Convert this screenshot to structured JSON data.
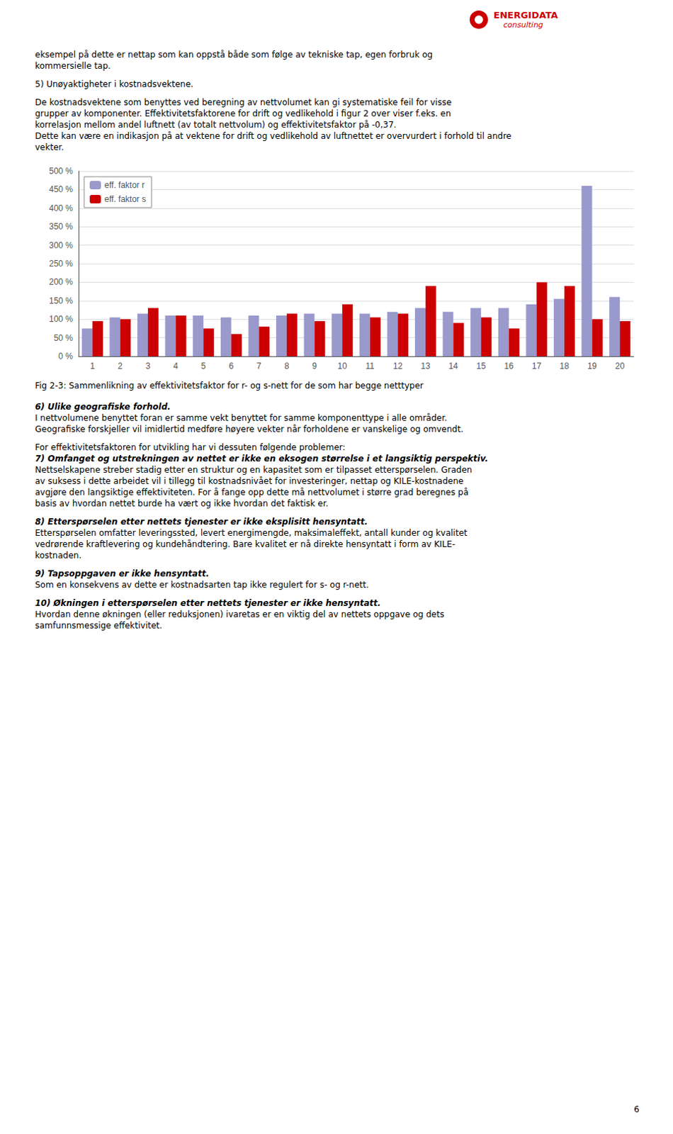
{
  "chart_data": {
    "type": "bar",
    "categories": [
      1,
      2,
      3,
      4,
      5,
      6,
      7,
      8,
      9,
      10,
      11,
      12,
      13,
      14,
      15,
      16,
      17,
      18,
      19,
      20
    ],
    "series": [
      {
        "name": "eff. faktor r",
        "color": "#9999cc",
        "values": [
          75,
          105,
          115,
          110,
          110,
          105,
          110,
          110,
          115,
          115,
          115,
          120,
          130,
          120,
          130,
          130,
          140,
          155,
          460,
          160
        ]
      },
      {
        "name": "eff. faktor s",
        "color": "#cc0000",
        "values": [
          95,
          100,
          130,
          110,
          75,
          60,
          80,
          115,
          95,
          140,
          105,
          115,
          190,
          90,
          105,
          75,
          200,
          190,
          100,
          95
        ]
      }
    ],
    "ylim": [
      0,
      500
    ],
    "yticks": [
      {
        "value": 0,
        "label": "0 %"
      },
      {
        "value": 50,
        "label": "50 %"
      },
      {
        "value": 100,
        "label": "100 %"
      },
      {
        "value": 150,
        "label": "150 %"
      },
      {
        "value": 200,
        "label": "200 %"
      },
      {
        "value": 250,
        "label": "250 %"
      },
      {
        "value": 300,
        "label": "300 %"
      },
      {
        "value": 350,
        "label": "350 %"
      },
      {
        "value": 400,
        "label": "400 %"
      },
      {
        "value": 450,
        "label": "450 %"
      },
      {
        "value": 500,
        "label": "500 %"
      }
    ],
    "grid": true,
    "legend": "upper left"
  },
  "logo": [
    "ENERGIDATA",
    "consulting"
  ],
  "text_before": [
    {
      "lines": [
        "eksempel på dette er nettap som kan oppstå både som følge av tekniske tap, egen forbruk og",
        "kommersielle tap."
      ]
    },
    {
      "lines": [
        "5) Unøyaktigheter i kostnadsvektene."
      ]
    },
    {
      "lines": [
        "De kostnadsvektene som benyttes ved beregning av nettvolumet kan gi systematiske feil for visse",
        "grupper av komponenter. Effektivitetsfaktorene for drift og vedlikehold i figur 2 over viser f.eks. en",
        "korrelasjon mellom andel luftnett (av totalt nettvolum) og effektivitetsfaktor på -0,37.",
        "Dette kan være en indikasjon på at vektene for drift og vedlikehold av luftnettet er overvurdert i forhold til andre",
        "vekter."
      ]
    }
  ],
  "caption": "Fig 2-3: Sammenlikning av effektivitetsfaktor for r- og s-nett for de som har begge netttyper",
  "text_after": [
    {
      "heading": "6) Ulike geografiske forhold.",
      "lines": [
        "I nettvolumene benyttet foran er samme vekt benyttet for samme komponenttype i alle områder.",
        "Geografiske forskjeller vil imidlertid medføre høyere vekter når forholdene er vanskelige og omvendt."
      ]
    },
    {
      "lines": [
        "For effektivitetsfaktoren for utvikling har vi dessuten følgende problemer:"
      ],
      "heading_after": "7) Omfanget og utstrekningen av nettet er ikke en eksogen størrelse i et langsiktig perspektiv.",
      "lines_after": [
        "Nettselskapene streber stadig etter en struktur og en kapasitet som er tilpasset etterspørselen. Graden",
        "av suksess i dette arbeidet vil i tillegg til kostnadsnivået for investeringer, nettap og KILE-kostnadene",
        "avgjøre den langsiktige effektiviteten. For å fange opp dette må nettvolumet i større grad beregnes på",
        "basis av hvordan nettet burde ha vært og ikke hvordan det faktisk er."
      ]
    },
    {
      "heading": "8) Etterspørselen etter nettets tjenester er ikke eksplisitt hensyntatt.",
      "lines": [
        "Etterspørselen omfatter leveringssted, levert energimengde, maksimaleffekt, antall kunder og kvalitet",
        "vedrørende kraftlevering og kundehåndtering. Bare kvalitet er nå direkte hensyntatt i form av KILE-",
        "kostnaden."
      ]
    },
    {
      "heading": "9) Tapsoppgaven er ikke hensyntatt.",
      "lines": [
        "Som en konsekvens av dette er kostnadsarten tap ikke regulert for s- og r-nett."
      ]
    },
    {
      "heading": "10) Økningen i etterspørselen etter nettets tjenester er ikke hensyntatt.",
      "lines": [
        "Hvordan denne økningen (eller reduksjonen) ivaretas er en viktig del av nettets oppgave og dets",
        "samfunnsmessige effektivitet."
      ]
    }
  ],
  "page_number": "6"
}
